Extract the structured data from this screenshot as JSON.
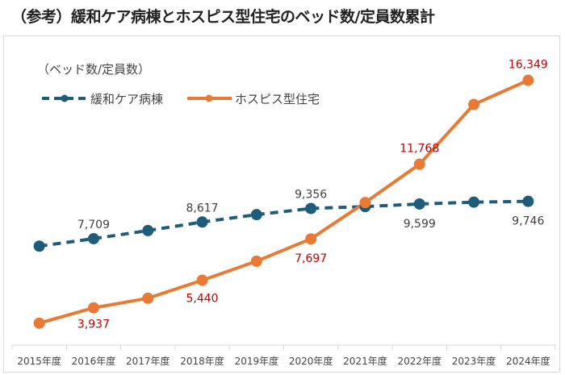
{
  "title": "（参考）緩和ケア病棟とホスピス型住宅のベッド数/定員数累計",
  "chart_data": {
    "type": "line",
    "title": "（参考）緩和ケア病棟とホスピス型住宅のベッド数/定員数累計",
    "ylabel": "（ベッド数/定員数）",
    "xlabel": "",
    "categories": [
      "2015年度",
      "2016年度",
      "2017年度",
      "2018年度",
      "2019年度",
      "2020年度",
      "2021年度",
      "2022年度",
      "2023年度",
      "2024年度"
    ],
    "ylim": [
      1900,
      18000
    ],
    "grid": false,
    "legend_position": "top-left",
    "series": [
      {
        "name": "緩和ケア病棟",
        "color": "#1f5c7a",
        "line_style": "dashed",
        "values": [
          7300,
          7709,
          8150,
          8617,
          9020,
          9356,
          9460,
          9599,
          9700,
          9746
        ],
        "labels": [
          null,
          "7,709",
          null,
          "8,617",
          null,
          "9,356",
          null,
          "9,599",
          null,
          "9,746"
        ],
        "label_color": "#404040"
      },
      {
        "name": "ホスピス型住宅",
        "color": "#e87a35",
        "line_style": "solid",
        "values": [
          3100,
          3937,
          4460,
          5440,
          6480,
          7697,
          9680,
          11768,
          15030,
          16349
        ],
        "labels": [
          null,
          "3,937",
          null,
          "5,440",
          null,
          "7,697",
          null,
          "11,768",
          null,
          "16,349"
        ],
        "label_color": "#c00000"
      }
    ]
  }
}
